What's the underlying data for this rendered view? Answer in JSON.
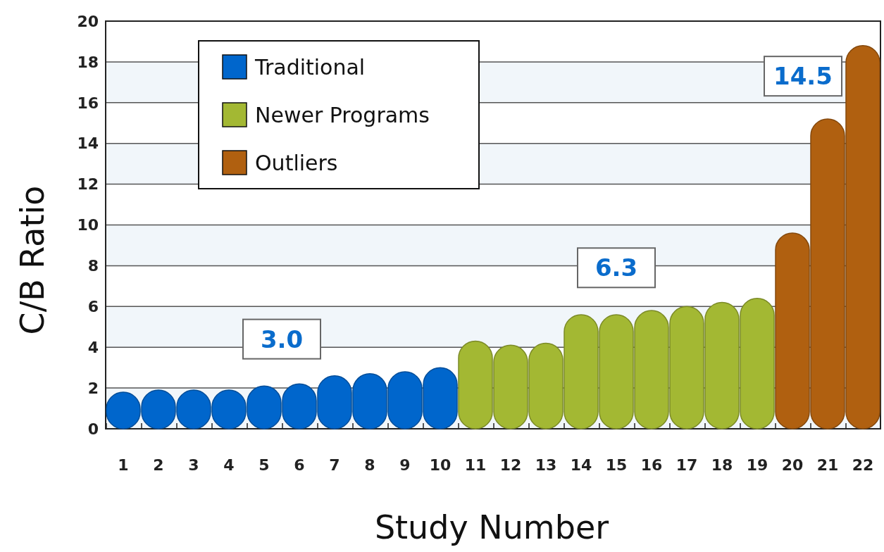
{
  "chart_data": {
    "type": "bar",
    "xlabel": "Study Number",
    "ylabel": "C/B Ratio",
    "categories": [
      "1",
      "2",
      "3",
      "4",
      "5",
      "6",
      "7",
      "8",
      "9",
      "10",
      "11",
      "12",
      "13",
      "14",
      "15",
      "16",
      "17",
      "18",
      "19",
      "20",
      "21",
      "22"
    ],
    "series": [
      {
        "name": "Traditional",
        "color": "#0066cc",
        "values": [
          1.8,
          1.9,
          1.9,
          1.9,
          2.1,
          2.2,
          2.6,
          2.7,
          2.8,
          3.0,
          null,
          null,
          null,
          null,
          null,
          null,
          null,
          null,
          null,
          null,
          null,
          null
        ]
      },
      {
        "name": "Newer Programs",
        "color": "#a3b833",
        "values": [
          null,
          null,
          null,
          null,
          null,
          null,
          null,
          null,
          null,
          null,
          4.3,
          4.1,
          4.2,
          5.6,
          5.6,
          5.8,
          6.0,
          6.2,
          6.4,
          null,
          null,
          null
        ]
      },
      {
        "name": "Outliers",
        "color": "#b06010",
        "values": [
          null,
          null,
          null,
          null,
          null,
          null,
          null,
          null,
          null,
          null,
          null,
          null,
          null,
          null,
          null,
          null,
          null,
          null,
          null,
          9.6,
          15.2,
          18.8
        ]
      }
    ],
    "annotations": [
      "3.0",
      "6.3",
      "14.5"
    ],
    "ylim": [
      0,
      20
    ],
    "yticks": [
      0,
      2,
      4,
      6,
      8,
      10,
      12,
      14,
      16,
      18,
      20
    ],
    "grid": "y",
    "legend": "top left"
  }
}
